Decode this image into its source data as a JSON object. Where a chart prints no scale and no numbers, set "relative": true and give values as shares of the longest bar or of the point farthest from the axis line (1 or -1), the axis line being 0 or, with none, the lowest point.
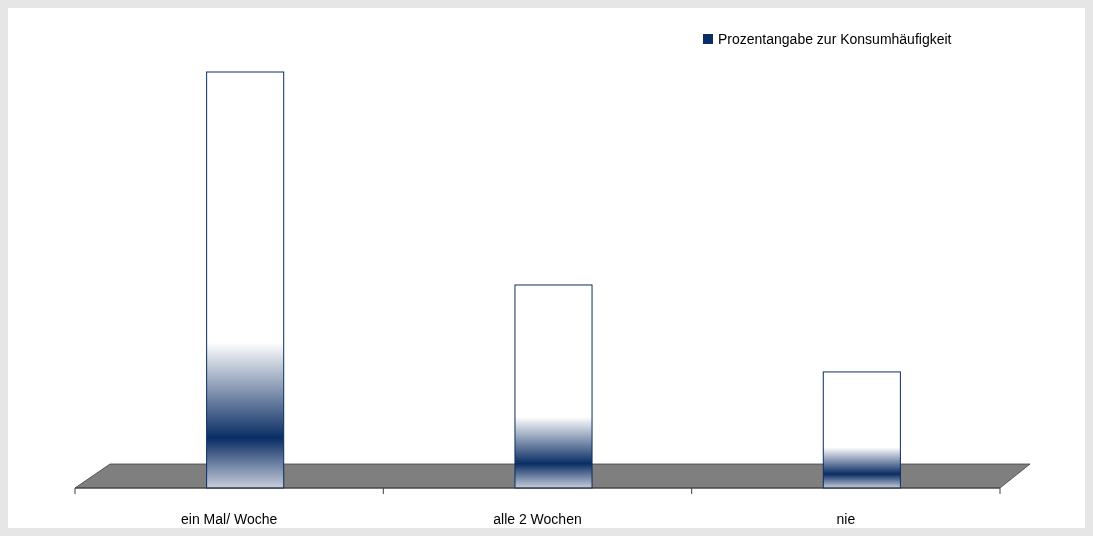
{
  "chart_data": {
    "type": "bar",
    "relative": true,
    "categories": [
      "ein Mal/ Woche",
      "alle 2 Wochen",
      "nie"
    ],
    "series": [
      {
        "name": "Prozentangabe zur Konsumhäufigkeit",
        "color": "#0a2d64",
        "values": [
          1,
          0.488,
          0.279
        ]
      }
    ],
    "legend": "top right"
  }
}
